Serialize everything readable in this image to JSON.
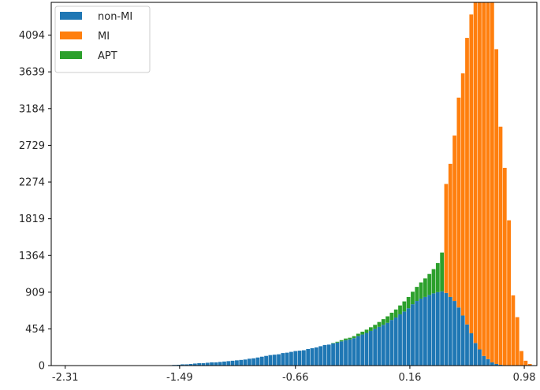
{
  "chart_data": {
    "type": "bar",
    "stacked": true,
    "title": "",
    "xlabel": "",
    "ylabel": "",
    "xlim": [
      -2.41,
      1.07
    ],
    "ylim": [
      0,
      4500
    ],
    "x_ticks": [
      "-2.31",
      "-1.49",
      "-0.66",
      "0.16",
      "0.98"
    ],
    "y_ticks": [
      "0",
      "454",
      "909",
      "1364",
      "1819",
      "2274",
      "2729",
      "3184",
      "3639",
      "4094"
    ],
    "grid": false,
    "legend_position": "top-left",
    "bar_width": 0.027,
    "colors": {
      "non-MI": "#1f77b4",
      "MI": "#ff7f0e",
      "APT": "#2ca02c"
    },
    "series": [
      {
        "name": "non-MI",
        "points": [
          [
            -1.56,
            5
          ],
          [
            -1.53,
            8
          ],
          [
            -1.5,
            10
          ],
          [
            -1.47,
            15
          ],
          [
            -1.44,
            15
          ],
          [
            -1.41,
            20
          ],
          [
            -1.38,
            25
          ],
          [
            -1.35,
            30
          ],
          [
            -1.32,
            30
          ],
          [
            -1.29,
            35
          ],
          [
            -1.26,
            40
          ],
          [
            -1.23,
            40
          ],
          [
            -1.2,
            45
          ],
          [
            -1.17,
            50
          ],
          [
            -1.14,
            55
          ],
          [
            -1.11,
            60
          ],
          [
            -1.08,
            65
          ],
          [
            -1.05,
            70
          ],
          [
            -1.02,
            75
          ],
          [
            -0.99,
            85
          ],
          [
            -0.96,
            90
          ],
          [
            -0.93,
            100
          ],
          [
            -0.9,
            110
          ],
          [
            -0.87,
            120
          ],
          [
            -0.84,
            130
          ],
          [
            -0.81,
            135
          ],
          [
            -0.78,
            140
          ],
          [
            -0.75,
            155
          ],
          [
            -0.72,
            160
          ],
          [
            -0.69,
            170
          ],
          [
            -0.66,
            180
          ],
          [
            -0.63,
            185
          ],
          [
            -0.6,
            190
          ],
          [
            -0.57,
            205
          ],
          [
            -0.54,
            215
          ],
          [
            -0.51,
            225
          ],
          [
            -0.48,
            240
          ],
          [
            -0.45,
            255
          ],
          [
            -0.42,
            260
          ],
          [
            -0.39,
            275
          ],
          [
            -0.36,
            285
          ],
          [
            -0.33,
            300
          ],
          [
            -0.3,
            315
          ],
          [
            -0.27,
            325
          ],
          [
            -0.24,
            340
          ],
          [
            -0.21,
            365
          ],
          [
            -0.18,
            385
          ],
          [
            -0.15,
            405
          ],
          [
            -0.12,
            430
          ],
          [
            -0.09,
            455
          ],
          [
            -0.06,
            480
          ],
          [
            -0.03,
            505
          ],
          [
            0.0,
            530
          ],
          [
            0.03,
            565
          ],
          [
            0.06,
            595
          ],
          [
            0.09,
            635
          ],
          [
            0.12,
            670
          ],
          [
            0.15,
            710
          ],
          [
            0.18,
            760
          ],
          [
            0.21,
            800
          ],
          [
            0.24,
            830
          ],
          [
            0.27,
            850
          ],
          [
            0.3,
            875
          ],
          [
            0.33,
            895
          ],
          [
            0.36,
            910
          ],
          [
            0.39,
            920
          ],
          [
            0.42,
            900
          ],
          [
            0.45,
            850
          ],
          [
            0.48,
            800
          ],
          [
            0.51,
            720
          ],
          [
            0.54,
            620
          ],
          [
            0.57,
            510
          ],
          [
            0.6,
            400
          ],
          [
            0.63,
            280
          ],
          [
            0.66,
            200
          ],
          [
            0.69,
            120
          ],
          [
            0.72,
            80
          ],
          [
            0.75,
            40
          ],
          [
            0.78,
            20
          ],
          [
            0.81,
            10
          ]
        ]
      },
      {
        "name": "MI",
        "points": [
          [
            0.42,
            1350
          ],
          [
            0.45,
            1650
          ],
          [
            0.48,
            2050
          ],
          [
            0.51,
            2600
          ],
          [
            0.54,
            3000
          ],
          [
            0.57,
            3550
          ],
          [
            0.6,
            3950
          ],
          [
            0.63,
            4400
          ],
          [
            0.66,
            4500
          ],
          [
            0.69,
            4500
          ],
          [
            0.72,
            4500
          ],
          [
            0.75,
            4500
          ],
          [
            0.78,
            3900
          ],
          [
            0.81,
            2950
          ],
          [
            0.84,
            2450
          ],
          [
            0.87,
            1800
          ],
          [
            0.9,
            870
          ],
          [
            0.93,
            600
          ],
          [
            0.96,
            180
          ],
          [
            0.99,
            60
          ],
          [
            1.02,
            20
          ]
        ]
      },
      {
        "name": "APT",
        "points": [
          [
            -0.39,
            5
          ],
          [
            -0.36,
            10
          ],
          [
            -0.33,
            15
          ],
          [
            -0.3,
            20
          ],
          [
            -0.27,
            20
          ],
          [
            -0.24,
            25
          ],
          [
            -0.21,
            30
          ],
          [
            -0.18,
            35
          ],
          [
            -0.15,
            40
          ],
          [
            -0.12,
            45
          ],
          [
            -0.09,
            50
          ],
          [
            -0.06,
            60
          ],
          [
            -0.03,
            70
          ],
          [
            0.0,
            80
          ],
          [
            0.03,
            90
          ],
          [
            0.06,
            100
          ],
          [
            0.09,
            110
          ],
          [
            0.12,
            125
          ],
          [
            0.15,
            140
          ],
          [
            0.18,
            155
          ],
          [
            0.21,
            175
          ],
          [
            0.24,
            200
          ],
          [
            0.27,
            230
          ],
          [
            0.3,
            260
          ],
          [
            0.33,
            300
          ],
          [
            0.36,
            360
          ],
          [
            0.39,
            480
          ],
          [
            0.42,
            0
          ]
        ]
      }
    ]
  }
}
